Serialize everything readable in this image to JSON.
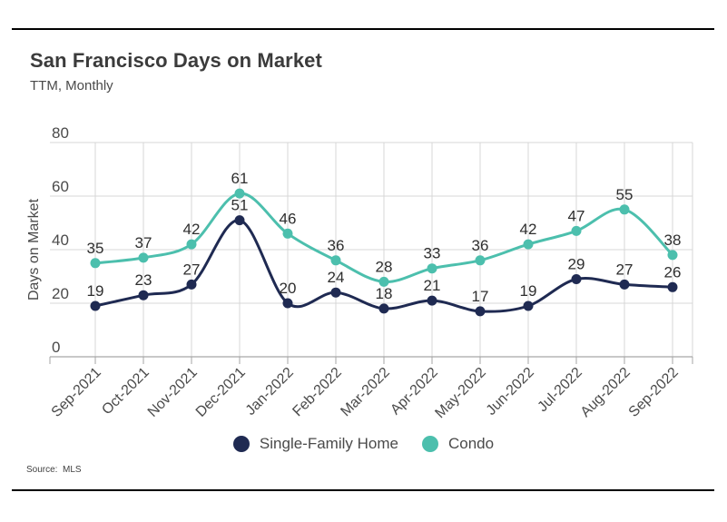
{
  "header": {
    "title": "San Francisco Days on Market",
    "subtitle": "TTM, Monthly"
  },
  "chart_data": {
    "type": "line",
    "title": "San Francisco Days on Market",
    "subtitle": "TTM, Monthly",
    "xlabel": "",
    "ylabel": "Days on Market",
    "ylim": [
      0,
      80
    ],
    "yticks": [
      0,
      20,
      40,
      60,
      80
    ],
    "grid": true,
    "legend_position": "bottom",
    "categories": [
      "Sep-2021",
      "Oct-2021",
      "Nov-2021",
      "Dec-2021",
      "Jan-2022",
      "Feb-2022",
      "Mar-2022",
      "Apr-2022",
      "May-2022",
      "Jun-2022",
      "Jul-2022",
      "Aug-2022",
      "Sep-2022"
    ],
    "series": [
      {
        "name": "Single-Family Home",
        "color": "#1f2a52",
        "values": [
          19,
          23,
          27,
          51,
          20,
          24,
          18,
          21,
          17,
          19,
          29,
          27,
          26
        ]
      },
      {
        "name": "Condo",
        "color": "#4cbfad",
        "values": [
          35,
          37,
          42,
          61,
          46,
          36,
          28,
          33,
          36,
          42,
          47,
          55,
          38
        ]
      }
    ],
    "colors": {
      "gridline": "#d7d7d7",
      "axis": "#a6a6a6",
      "tick_label": "#4a4a4a",
      "data_label": "#2e2e2e",
      "title": "#3b3b3b",
      "subtitle": "#4a4a4a",
      "rule": "#000000"
    }
  },
  "footer": {
    "source": "Source:  MLS"
  }
}
